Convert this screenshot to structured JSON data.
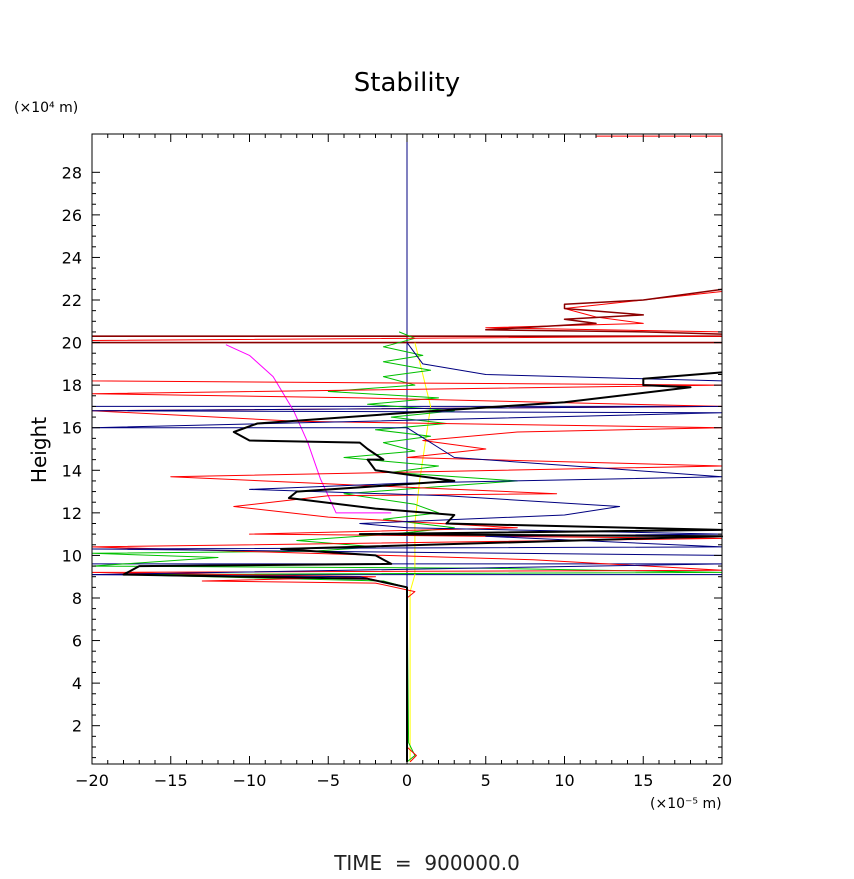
{
  "chart_data": {
    "type": "line",
    "title": "Stability",
    "ylabel": "Height",
    "xlabel": "",
    "y_unit_label": "(×10⁴ m)",
    "x_unit_label": "(×10⁻⁵ m)",
    "footer": "TIME  =  900000.0",
    "xlim": [
      -20,
      20
    ],
    "ylim": [
      0.2,
      29.8
    ],
    "x_ticks": [
      -20,
      -15,
      -10,
      -5,
      0,
      5,
      10,
      15,
      20
    ],
    "x_tick_labels": [
      "−20",
      "−15",
      "−10",
      "−5",
      "0",
      "5",
      "10",
      "15",
      "20"
    ],
    "y_ticks": [
      2,
      4,
      6,
      8,
      10,
      12,
      14,
      16,
      18,
      20,
      22,
      24,
      26,
      28
    ],
    "y_tick_labels": [
      "2",
      "4",
      "6",
      "8",
      "10",
      "12",
      "14",
      "16",
      "18",
      "20",
      "22",
      "24",
      "26",
      "28"
    ],
    "grid": false,
    "legend": "none",
    "reference_lines": {
      "vertical_x": 0,
      "horizontal_y": [
        9.1,
        9.6,
        17.0,
        20.0,
        20.3
      ],
      "colors": [
        "#000080",
        "#000080",
        "#000080",
        "#8b0000",
        "#8b0000"
      ]
    },
    "series": [
      {
        "color": "#ff00ff",
        "width": 1,
        "points": [
          [
            -11.5,
            19.9
          ],
          [
            -10.0,
            19.4
          ],
          [
            -8.5,
            18.4
          ],
          [
            -7.2,
            16.8
          ],
          [
            -6.3,
            15.3
          ],
          [
            -5.5,
            13.6
          ],
          [
            -4.5,
            12.0
          ],
          [
            -1.0,
            12.0
          ]
        ]
      },
      {
        "color": "#ffff00",
        "width": 1,
        "points": [
          [
            0.2,
            0.3
          ],
          [
            0.2,
            8.3
          ],
          [
            0.5,
            9.1
          ],
          [
            0.5,
            11.5
          ],
          [
            0.8,
            13.5
          ],
          [
            1.2,
            15.5
          ],
          [
            1.5,
            17.0
          ],
          [
            1.0,
            18.5
          ],
          [
            0.5,
            20.0
          ]
        ]
      },
      {
        "color": "#00c000",
        "width": 1,
        "points": [
          [
            0.0,
            0.3
          ],
          [
            0.5,
            0.6
          ],
          [
            0.1,
            1.2
          ],
          [
            0.0,
            8.5
          ],
          [
            -1.5,
            8.8
          ],
          [
            -18.0,
            9.1
          ],
          [
            20.0,
            9.2
          ],
          [
            5.0,
            9.4
          ],
          [
            -20.0,
            9.5
          ],
          [
            -12.0,
            9.9
          ],
          [
            -20.0,
            10.1
          ],
          [
            -6.0,
            10.2
          ],
          [
            -2.0,
            10.4
          ],
          [
            -7.0,
            10.7
          ],
          [
            -1.0,
            11.0
          ],
          [
            3.0,
            11.3
          ],
          [
            -1.5,
            11.7
          ],
          [
            2.0,
            12.0
          ],
          [
            0.5,
            12.4
          ],
          [
            -4.0,
            12.9
          ],
          [
            1.5,
            13.2
          ],
          [
            7.0,
            13.5
          ],
          [
            -1.0,
            13.9
          ],
          [
            2.0,
            14.2
          ],
          [
            -4.0,
            14.6
          ],
          [
            0.5,
            14.9
          ],
          [
            -1.5,
            15.3
          ],
          [
            1.5,
            15.6
          ],
          [
            -2.0,
            15.9
          ],
          [
            2.5,
            16.2
          ],
          [
            -1.0,
            16.5
          ],
          [
            3.0,
            16.8
          ],
          [
            -2.5,
            17.1
          ],
          [
            2.0,
            17.4
          ],
          [
            -5.0,
            17.7
          ],
          [
            0.5,
            18.0
          ],
          [
            -1.5,
            18.4
          ],
          [
            1.5,
            18.7
          ],
          [
            -1.5,
            19.1
          ],
          [
            1.0,
            19.4
          ],
          [
            -1.5,
            19.8
          ],
          [
            0.5,
            20.2
          ],
          [
            -0.5,
            20.5
          ]
        ]
      },
      {
        "color": "#ff0000",
        "width": 1,
        "points": [
          [
            0.2,
            0.3
          ],
          [
            0.6,
            0.6
          ],
          [
            0.0,
            1.0
          ],
          [
            0.0,
            8.0
          ],
          [
            0.5,
            8.3
          ],
          [
            -2.0,
            8.7
          ],
          [
            -13.0,
            8.8
          ],
          [
            -2.0,
            9.0
          ],
          [
            -20.0,
            9.2
          ],
          [
            20.0,
            9.3
          ],
          [
            8.0,
            9.8
          ],
          [
            -20.0,
            10.4
          ],
          [
            20.0,
            10.8
          ],
          [
            -10.0,
            11.0
          ],
          [
            7.0,
            11.3
          ],
          [
            -5.0,
            11.8
          ],
          [
            -11.0,
            12.3
          ],
          [
            -5.0,
            12.8
          ],
          [
            9.5,
            12.9
          ],
          [
            -3.0,
            13.3
          ],
          [
            -15.0,
            13.7
          ],
          [
            20.0,
            14.2
          ],
          [
            0.0,
            14.6
          ],
          [
            5.0,
            15.0
          ],
          [
            1.0,
            15.4
          ],
          [
            7.0,
            15.8
          ],
          [
            20.0,
            16.0
          ],
          [
            -7.0,
            16.3
          ],
          [
            -20.0,
            16.8
          ],
          [
            20.0,
            17.0
          ],
          [
            -3.0,
            17.4
          ],
          [
            -20.0,
            17.6
          ],
          [
            20.0,
            18.0
          ],
          [
            -20.0,
            18.2
          ],
          [
            -20.0,
            20.1
          ],
          [
            20.0,
            20.3
          ],
          [
            20.0,
            20.5
          ],
          [
            5.0,
            20.7
          ],
          [
            15.0,
            20.9
          ],
          [
            12.0,
            21.2
          ],
          [
            10.0,
            21.6
          ],
          [
            20.0,
            22.4
          ],
          [
            20.0,
            29.7
          ],
          [
            12.0,
            29.7
          ]
        ]
      },
      {
        "color": "#000080",
        "width": 1,
        "points": [
          [
            0.0,
            0.3
          ],
          [
            0.0,
            8.5
          ],
          [
            -3.0,
            9.0
          ],
          [
            -20.0,
            9.1
          ],
          [
            20.0,
            9.6
          ],
          [
            20.0,
            10.0
          ],
          [
            6.5,
            10.1
          ],
          [
            -20.0,
            10.3
          ],
          [
            20.0,
            10.4
          ],
          [
            5.0,
            10.9
          ],
          [
            20.0,
            11.0
          ],
          [
            0.0,
            11.3
          ],
          [
            -3.0,
            11.5
          ],
          [
            10.0,
            11.9
          ],
          [
            13.5,
            12.3
          ],
          [
            2.5,
            12.8
          ],
          [
            -10.0,
            13.1
          ],
          [
            0.0,
            13.4
          ],
          [
            20.0,
            13.7
          ],
          [
            3.0,
            14.6
          ],
          [
            0.0,
            16.0
          ],
          [
            -20.0,
            16.0
          ],
          [
            20.0,
            16.7
          ],
          [
            -20.0,
            16.8
          ],
          [
            20.0,
            17.0
          ],
          [
            20.0,
            18.2
          ],
          [
            5.0,
            18.5
          ],
          [
            1.0,
            19.0
          ],
          [
            0.0,
            20.0
          ]
        ]
      },
      {
        "color": "#000000",
        "width": 2,
        "points": [
          [
            0.0,
            0.3
          ],
          [
            0.0,
            8.5
          ],
          [
            -2.5,
            8.9
          ],
          [
            -18.0,
            9.1
          ],
          [
            -17.0,
            9.5
          ],
          [
            -1.0,
            9.6
          ],
          [
            -2.0,
            10.0
          ],
          [
            -8.0,
            10.3
          ],
          [
            20.0,
            10.9
          ],
          [
            -3.0,
            11.0
          ],
          [
            20.0,
            11.2
          ],
          [
            2.5,
            11.5
          ],
          [
            3.0,
            11.9
          ],
          [
            -2.0,
            12.2
          ],
          [
            -7.5,
            12.7
          ],
          [
            -7.0,
            13.0
          ],
          [
            3.0,
            13.5
          ],
          [
            -2.0,
            14.0
          ],
          [
            -2.5,
            14.5
          ],
          [
            -1.5,
            14.5
          ],
          [
            -2.5,
            15.0
          ],
          [
            -3.0,
            15.3
          ],
          [
            -10.0,
            15.4
          ],
          [
            -11.0,
            15.8
          ],
          [
            -9.5,
            16.2
          ],
          [
            0.0,
            16.7
          ],
          [
            10.0,
            17.2
          ],
          [
            18.0,
            17.9
          ],
          [
            15.0,
            18.0
          ],
          [
            15.0,
            18.3
          ],
          [
            20.0,
            18.6
          ]
        ]
      },
      {
        "color": "#8b0000",
        "width": 1.5,
        "points": [
          [
            20.0,
            22.5
          ],
          [
            15.0,
            22.0
          ],
          [
            10.0,
            21.8
          ],
          [
            10.0,
            21.6
          ],
          [
            15.0,
            21.3
          ],
          [
            10.0,
            21.1
          ],
          [
            12.0,
            20.9
          ],
          [
            5.0,
            20.6
          ],
          [
            15.0,
            20.5
          ],
          [
            20.0,
            20.4
          ]
        ]
      }
    ]
  }
}
